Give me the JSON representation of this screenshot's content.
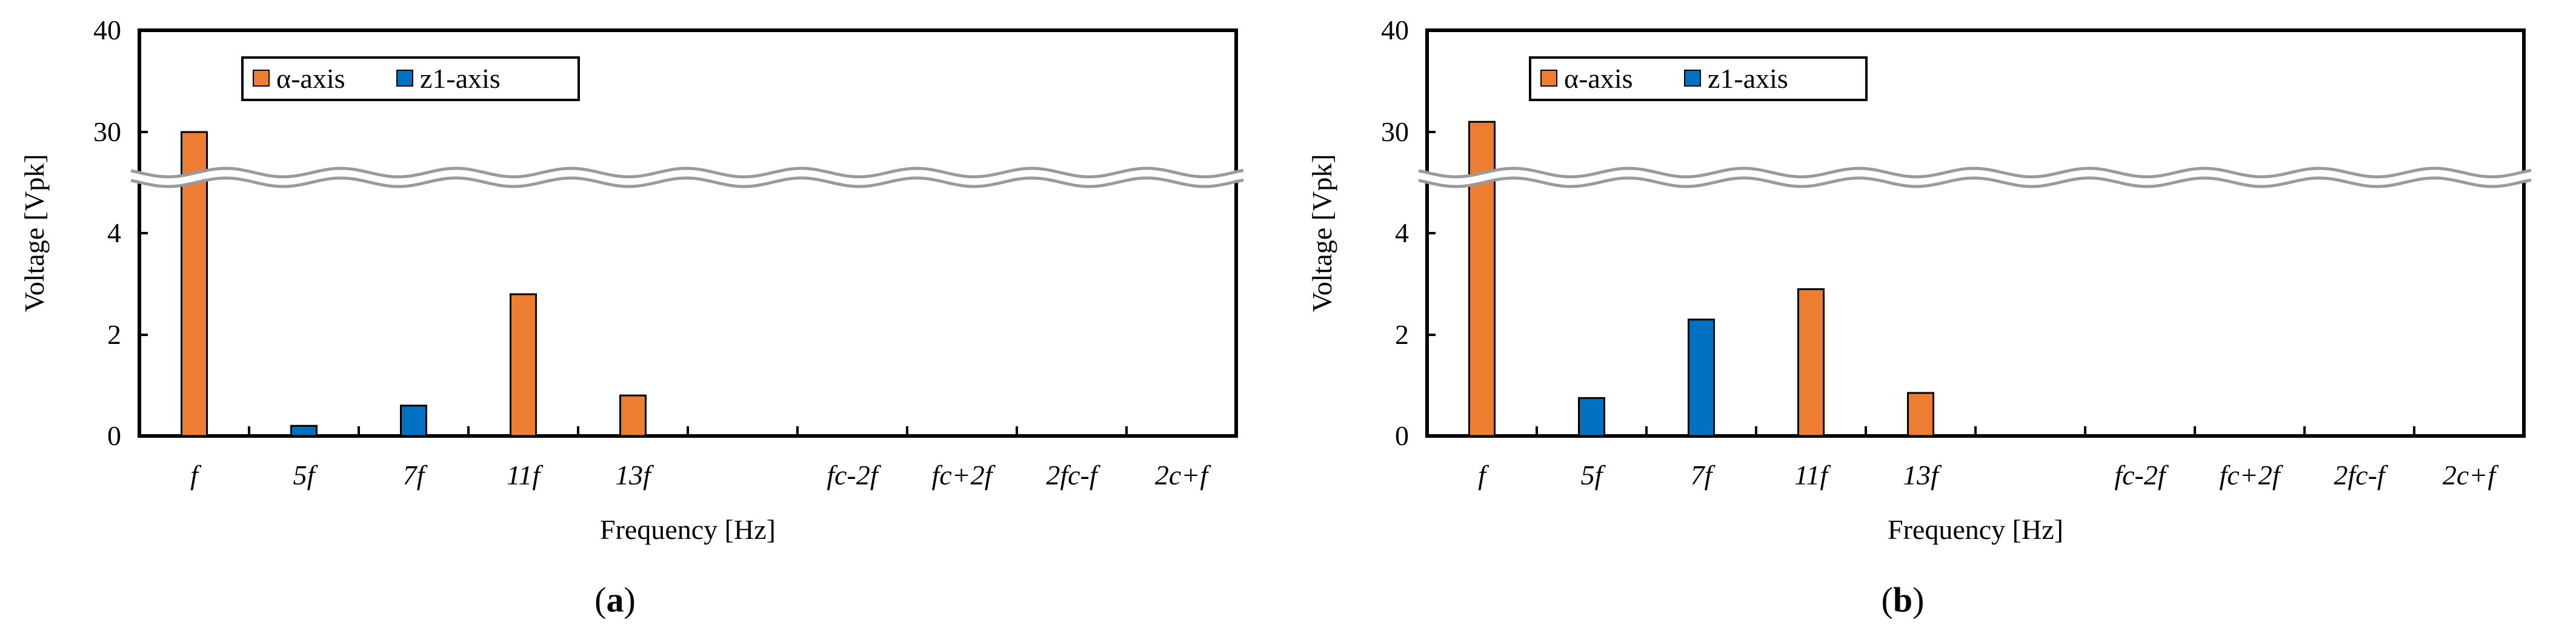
{
  "chart_data": [
    {
      "type": "bar",
      "panel_label": "(a)",
      "panel_letter": "a",
      "xlabel": "Frequency [Hz]",
      "ylabel": "Voltage [Vpk]",
      "categories": [
        "f",
        "5f",
        "7f",
        "11f",
        "13f",
        "",
        "fc-2f",
        "fc+2f",
        "2fc-f",
        "2c+f"
      ],
      "yticks": [
        "0",
        "2",
        "4",
        "30",
        "40"
      ],
      "axis_break": {
        "lower_range": [
          0,
          5
        ],
        "upper_range": [
          25,
          40
        ]
      },
      "legend_position": "top-left",
      "grid": false,
      "series": [
        {
          "name": "α-axis",
          "color": "#ED7D31",
          "values": [
            30,
            null,
            null,
            2.8,
            0.8,
            null,
            null,
            null,
            null,
            null
          ]
        },
        {
          "name": "z1-axis",
          "color": "#0070C0",
          "values": [
            null,
            0.2,
            0.6,
            null,
            null,
            null,
            null,
            null,
            null,
            null
          ]
        }
      ]
    },
    {
      "type": "bar",
      "panel_label": "(b)",
      "panel_letter": "b",
      "xlabel": "Frequency [Hz]",
      "ylabel": "Voltage [Vpk]",
      "categories": [
        "f",
        "5f",
        "7f",
        "11f",
        "13f",
        "",
        "fc-2f",
        "fc+2f",
        "2fc-f",
        "2c+f"
      ],
      "yticks": [
        "0",
        "2",
        "4",
        "30",
        "40"
      ],
      "axis_break": {
        "lower_range": [
          0,
          5
        ],
        "upper_range": [
          25,
          40
        ]
      },
      "legend_position": "top-left",
      "grid": false,
      "series": [
        {
          "name": "α-axis",
          "color": "#ED7D31",
          "values": [
            31,
            null,
            null,
            2.9,
            0.85,
            null,
            null,
            null,
            null,
            null
          ]
        },
        {
          "name": "z1-axis",
          "color": "#0070C0",
          "values": [
            null,
            0.75,
            2.3,
            null,
            null,
            null,
            null,
            null,
            null,
            null
          ]
        }
      ]
    }
  ]
}
